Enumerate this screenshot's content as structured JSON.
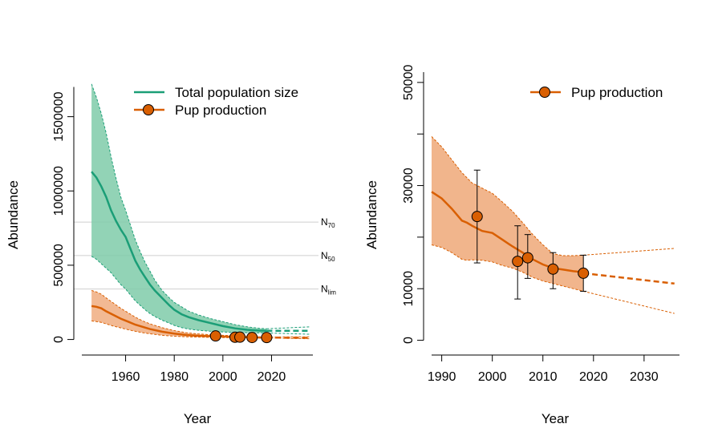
{
  "chart_data": [
    {
      "type": "line",
      "xlabel": "Year",
      "ylabel": "Abundance",
      "xlim": [
        1942,
        2037
      ],
      "ylim": [
        -40000,
        1800000
      ],
      "xticks": [
        1960,
        1980,
        2000,
        2020
      ],
      "yticks": [
        0,
        500000,
        1000000,
        1500000
      ],
      "xtick_labels": [
        "1960",
        "1980",
        "2000",
        "2020"
      ],
      "ytick_labels": [
        "0",
        "500000",
        "1000000",
        "1500000"
      ],
      "legend_position": "top-right",
      "grid": false,
      "reference_lines": [
        {
          "label": "N",
          "subscript": "70",
          "y": 790000
        },
        {
          "label": "N",
          "subscript": "50",
          "y": 565000
        },
        {
          "label": "N",
          "subscript": "lim",
          "y": 340000
        }
      ],
      "series": [
        {
          "name": "Total population size",
          "color": "#1b9e77",
          "band_color": "#7fcba9",
          "x": [
            1946,
            1948,
            1950,
            1952,
            1954,
            1956,
            1958,
            1960,
            1962,
            1964,
            1966,
            1968,
            1970,
            1972,
            1975,
            1978,
            1980,
            1983,
            1986,
            1990,
            1995,
            2000,
            2005,
            2010,
            2015,
            2018
          ],
          "mean": [
            1130000,
            1090000,
            1030000,
            960000,
            870000,
            800000,
            740000,
            690000,
            610000,
            530000,
            470000,
            420000,
            370000,
            330000,
            280000,
            230000,
            200000,
            170000,
            150000,
            130000,
            110000,
            90000,
            75000,
            65000,
            60000,
            58000
          ],
          "lower": [
            560000,
            540000,
            510000,
            480000,
            450000,
            410000,
            370000,
            340000,
            300000,
            260000,
            230000,
            200000,
            175000,
            155000,
            130000,
            110000,
            95000,
            80000,
            70000,
            62000,
            55000,
            50000,
            47000,
            45000,
            44000,
            44000
          ],
          "upper": [
            1720000,
            1630000,
            1520000,
            1390000,
            1230000,
            1090000,
            960000,
            870000,
            770000,
            670000,
            590000,
            520000,
            460000,
            400000,
            330000,
            280000,
            250000,
            220000,
            190000,
            165000,
            140000,
            120000,
            100000,
            85000,
            75000,
            72000
          ],
          "projection_x": [
            2018,
            2036
          ],
          "projection_mean": [
            58000,
            58000
          ],
          "projection_lower": [
            44000,
            35000
          ],
          "projection_upper": [
            72000,
            85000
          ]
        },
        {
          "name": "Pup production",
          "color": "#d95f02",
          "band_color": "#f0ad80",
          "x": [
            1946,
            1948,
            1950,
            1952,
            1955,
            1958,
            1961,
            1964,
            1967,
            1970,
            1975,
            1980,
            1985,
            1990,
            1995,
            2000,
            2005,
            2010,
            2015,
            2018
          ],
          "mean": [
            225000,
            220000,
            210000,
            190000,
            165000,
            140000,
            120000,
            100000,
            85000,
            70000,
            52000,
            40000,
            30000,
            25000,
            22000,
            20000,
            17000,
            15000,
            13500,
            13000
          ],
          "lower": [
            125000,
            120000,
            115000,
            105000,
            90000,
            78000,
            66000,
            55000,
            46000,
            38000,
            28000,
            22000,
            18000,
            16000,
            14000,
            13000,
            11000,
            10000,
            9500,
            9500
          ],
          "upper": [
            330000,
            320000,
            305000,
            280000,
            245000,
            210000,
            180000,
            150000,
            125000,
            105000,
            80000,
            60000,
            45000,
            37000,
            32000,
            28000,
            24000,
            20000,
            17000,
            16500
          ],
          "points_x": [
            1997,
            2005,
            2007,
            2012,
            2018
          ],
          "points_y": [
            24000,
            15000,
            16000,
            13500,
            13000
          ],
          "projection_x": [
            2018,
            2036
          ],
          "projection_mean": [
            13000,
            11500
          ],
          "projection_lower": [
            9500,
            5000
          ],
          "projection_upper": [
            16500,
            18000
          ]
        }
      ]
    },
    {
      "type": "line",
      "xlabel": "Year",
      "ylabel": "Abundance",
      "xlim": [
        1988,
        2037
      ],
      "ylim": [
        -1000,
        52000
      ],
      "xticks": [
        1990,
        2000,
        2010,
        2020,
        2030
      ],
      "yticks": [
        0,
        10000,
        20000,
        30000,
        40000,
        50000
      ],
      "xtick_labels": [
        "1990",
        "2000",
        "2010",
        "2020",
        "2030"
      ],
      "ytick_labels": [
        "0",
        "10000",
        "",
        "30000",
        "",
        "50000"
      ],
      "legend_position": "top-right",
      "grid": false,
      "series": [
        {
          "name": "Pup production",
          "color": "#d95f02",
          "band_color": "#f0ad80",
          "x": [
            1988,
            1990,
            1992,
            1994,
            1995,
            1996,
            1998,
            2000,
            2002,
            2004,
            2006,
            2008,
            2010,
            2012,
            2014,
            2016,
            2018
          ],
          "mean": [
            28800,
            27500,
            25500,
            23200,
            22800,
            22200,
            21200,
            20800,
            19500,
            18200,
            17000,
            15700,
            14700,
            14000,
            13700,
            13400,
            13200
          ],
          "lower": [
            18500,
            18000,
            17000,
            15700,
            15500,
            15600,
            15500,
            15200,
            14500,
            14000,
            13200,
            12200,
            11500,
            11000,
            10500,
            10000,
            9500
          ],
          "upper": [
            39500,
            37500,
            35000,
            32500,
            31500,
            30500,
            29500,
            28500,
            26800,
            25000,
            22800,
            20500,
            18500,
            16800,
            16400,
            16400,
            16500
          ],
          "points_x": [
            1997,
            2005,
            2007,
            2012,
            2018
          ],
          "points_y": [
            24000,
            15300,
            16000,
            13800,
            13000
          ],
          "error_lower": [
            15000,
            8000,
            12000,
            10000,
            9500
          ],
          "error_upper": [
            33000,
            22200,
            20500,
            17000,
            16500
          ],
          "projection_x": [
            2018,
            2036
          ],
          "projection_mean": [
            13000,
            11000
          ],
          "projection_lower": [
            9500,
            5200
          ],
          "projection_upper": [
            16500,
            17800
          ]
        }
      ]
    }
  ]
}
